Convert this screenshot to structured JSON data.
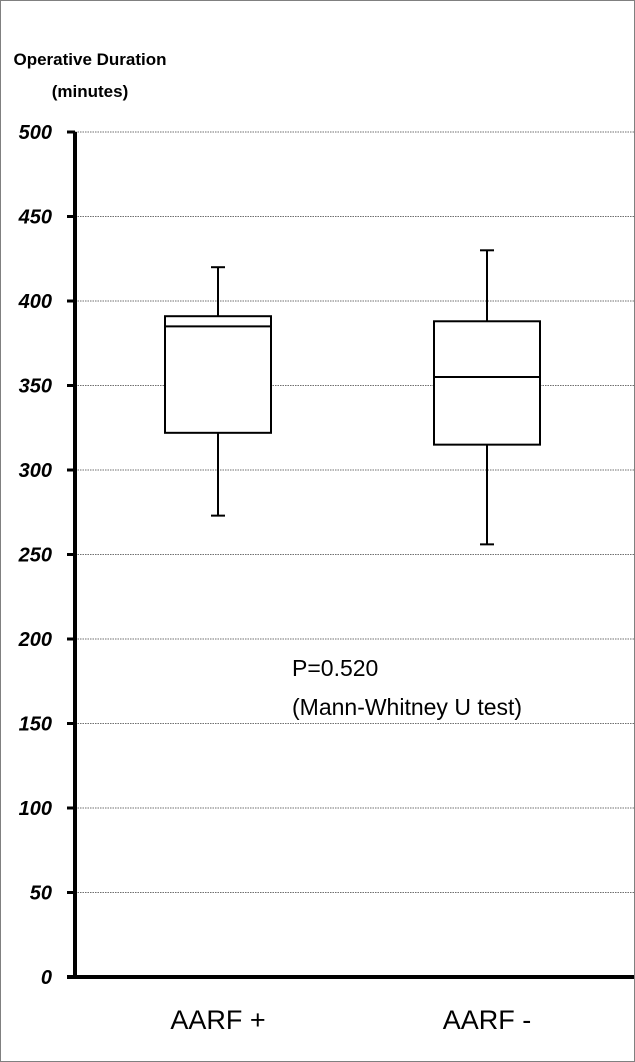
{
  "chart_data": {
    "type": "boxplot",
    "ylabel": [
      "Operative Duration",
      "(minutes)"
    ],
    "ylim": [
      0,
      500
    ],
    "yticks": [
      0,
      50,
      100,
      150,
      200,
      250,
      300,
      350,
      400,
      450,
      500
    ],
    "grid": true,
    "categories": [
      "AARF +",
      "AARF -"
    ],
    "boxes": [
      {
        "category": "AARF +",
        "whisker_low": 273,
        "q1": 322,
        "median": 385,
        "q3": 391,
        "whisker_high": 420
      },
      {
        "category": "AARF -",
        "whisker_low": 256,
        "q1": 315,
        "median": 355,
        "q3": 388,
        "whisker_high": 430
      }
    ],
    "annotations": [
      "P=0.520",
      "(Mann-Whitney U test)"
    ]
  }
}
